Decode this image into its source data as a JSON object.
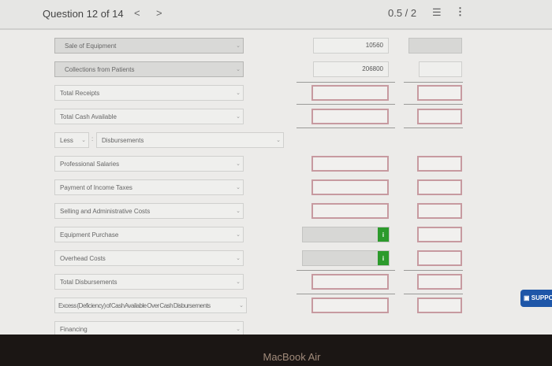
{
  "header": {
    "question": "Question 12 of 14",
    "prev": "<",
    "next": ">",
    "score": "0.5 / 2",
    "list_icon": "list-icon",
    "more_icon": "more-vertical-icon"
  },
  "rows": [
    {
      "label": "Sale of Equipment",
      "style": "selected",
      "col1": {
        "type": "value",
        "value": "10560"
      },
      "col2": {
        "type": "grey"
      }
    },
    {
      "label": "Collections from Patients",
      "style": "selected",
      "col1": {
        "type": "value",
        "value": "206800"
      },
      "col2": {
        "type": "value",
        "value": ""
      }
    },
    {
      "label": "Total Receipts",
      "col1": {
        "type": "red"
      },
      "col2": {
        "type": "red"
      }
    },
    {
      "label": "Total Cash Available",
      "col1": {
        "type": "red"
      },
      "col2": {
        "type": "red"
      }
    },
    {
      "label": "Disbursements",
      "prefix": "Less",
      "wide": true
    },
    {
      "label": "Professional Salaries",
      "col1": {
        "type": "red"
      },
      "col2": {
        "type": "red"
      }
    },
    {
      "label": "Payment of Income Taxes",
      "col1": {
        "type": "red"
      },
      "col2": {
        "type": "red"
      }
    },
    {
      "label": "Selling and Administrative Costs",
      "col1": {
        "type": "red"
      },
      "col2": {
        "type": "red"
      }
    },
    {
      "label": "Equipment Purchase",
      "col1": {
        "type": "info"
      },
      "col2": {
        "type": "red"
      }
    },
    {
      "label": "Overhead Costs",
      "col1": {
        "type": "info"
      },
      "col2": {
        "type": "red"
      }
    },
    {
      "label": "Total Disbursements",
      "col1": {
        "type": "red"
      },
      "col2": {
        "type": "red"
      }
    },
    {
      "label": "Excess (Deficiency) of Cash Available Over Cash Disbursements",
      "col1": {
        "type": "red"
      },
      "col2": {
        "type": "red"
      }
    },
    {
      "label": "Financing"
    }
  ],
  "support": {
    "label": "SUPPORT"
  },
  "bezel": {
    "label": "MacBook Air"
  },
  "colors": {
    "error_border": "#c79aa0",
    "info_green": "#2c9a2c",
    "support_blue": "#1e56a8"
  }
}
